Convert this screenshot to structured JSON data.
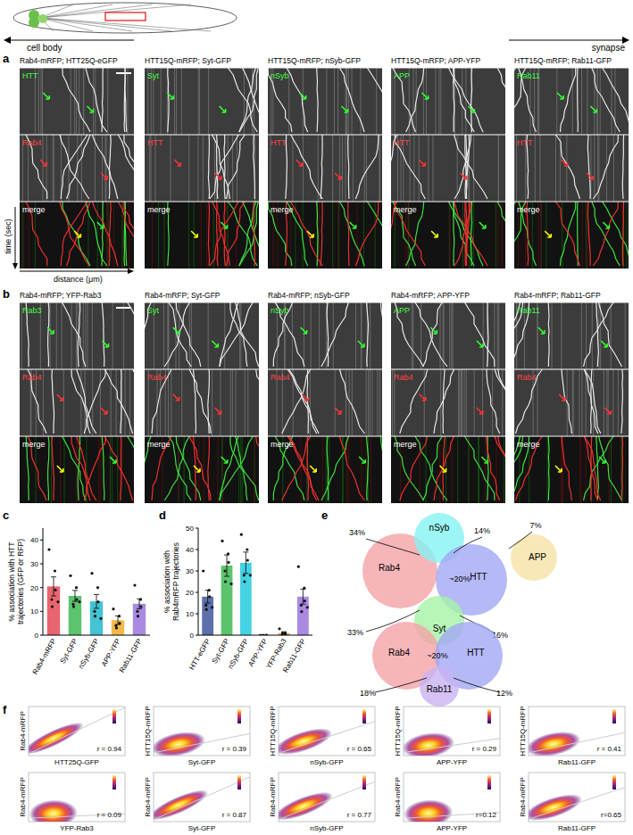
{
  "header": {
    "cell_body": "cell body",
    "synapse": "synapse"
  },
  "panel_labels": [
    "a",
    "b",
    "c",
    "d",
    "e",
    "f"
  ],
  "panel_a": {
    "y_label": "time (sec)",
    "x_label": "distance (μm)",
    "kymographs": [
      {
        "title": "Rab4-mRFP; HTT25Q-eGFP",
        "top": "HTT",
        "middle": "Rab4",
        "bottom": "merge"
      },
      {
        "title": "HTT15Q-mRFP; Syt-GFP",
        "top": "Syt",
        "middle": "HTT",
        "bottom": "merge"
      },
      {
        "title": "HTT15Q-mRFP; nSyb-GFP",
        "top": "nSyb",
        "middle": "HTT",
        "bottom": "merge"
      },
      {
        "title": "HTT15Q-mRFP; APP-YFP",
        "top": "APP",
        "middle": "HTT",
        "bottom": "merge"
      },
      {
        "title": "HTT15Q-mRFP; Rab11-GFP",
        "top": "Rab11",
        "middle": "HTT",
        "bottom": "merge"
      }
    ]
  },
  "panel_b": {
    "kymographs": [
      {
        "title": "Rab4-mRFP; YFP-Rab3",
        "top": "Rab3",
        "middle": "Rab4",
        "bottom": "merge"
      },
      {
        "title": "Rab4-mRFP; Syt-GFP",
        "top": "Syt",
        "middle": "Rab4",
        "bottom": "merge"
      },
      {
        "title": "Rab4-mRFP; nSyb-GFP",
        "top": "nSyb",
        "middle": "Rab4",
        "bottom": "merge"
      },
      {
        "title": "Rab4-mRFP; APP-YFP",
        "top": "APP",
        "middle": "Rab4",
        "bottom": "merge"
      },
      {
        "title": "Rab4-mRFP; Rab11-GFP",
        "top": "Rab11",
        "middle": "Rab4",
        "bottom": "merge"
      }
    ]
  },
  "chart_data": [
    {
      "type": "bar",
      "y_label": [
        "% association with HTT",
        "trajectories (GFP or RFP)"
      ],
      "categories": [
        "Rab4-mRFP",
        "Syt-GFP",
        "nSyb-GFP",
        "APP-YFP",
        "Rab11-GFP"
      ],
      "values": [
        20.5,
        16.5,
        14.2,
        6.3,
        13.2
      ],
      "errors": [
        4,
        2.3,
        2.9,
        1.8,
        2.1
      ],
      "colors": [
        "#e8646e",
        "#5cc46c",
        "#43c3d3",
        "#f2b94a",
        "#a98ae0"
      ],
      "points": [
        [
          36,
          27,
          19,
          15,
          12,
          14
        ],
        [
          25,
          20,
          15,
          13,
          12,
          14
        ],
        [
          26,
          20,
          14,
          10,
          8,
          7
        ],
        [
          11,
          8,
          5,
          4,
          3
        ],
        [
          21,
          15,
          12,
          10,
          8
        ]
      ],
      "ylim": [
        0,
        45
      ],
      "yticks": [
        0,
        10,
        20,
        30,
        40
      ]
    },
    {
      "type": "bar",
      "y_label": [
        "% association with",
        "Rab4mRFP trajectories"
      ],
      "categories": [
        "HTT-eGFP",
        "Syt-GFP",
        "nSyb-GFP",
        "APP-YFP",
        "YFP-Rab3",
        "Rab11-GFP"
      ],
      "values": [
        18,
        32.5,
        33.8,
        0,
        1,
        18
      ],
      "errors": [
        3,
        5,
        5,
        0,
        0.6,
        3.5
      ],
      "colors": [
        "#5b6fa8",
        "#5cc46c",
        "#43d3e3",
        "#f2d04a",
        "#f5a85a",
        "#a98ae0"
      ],
      "points": [
        [
          30,
          21,
          18,
          14,
          12,
          13
        ],
        [
          44,
          38,
          34,
          30,
          25,
          24
        ],
        [
          47,
          40,
          35,
          28,
          25,
          28
        ],
        [
          0,
          0,
          0,
          0
        ],
        [
          3,
          1,
          0,
          0,
          1
        ],
        [
          32,
          22,
          16,
          14,
          11,
          13
        ]
      ],
      "ylim": [
        0,
        50
      ],
      "yticks": [
        0,
        10,
        20,
        30,
        40,
        50
      ]
    }
  ],
  "panel_e": {
    "venn_top": {
      "circles": [
        {
          "name": "Rab4",
          "color": "#f4a3a8"
        },
        {
          "name": "nSyb",
          "color": "#86f2f2"
        },
        {
          "name": "HTT",
          "color": "#a3a8f2"
        },
        {
          "name": "APP",
          "color": "#f6e2a6"
        },
        {
          "name": "Syt",
          "color": "#a6f2a6"
        }
      ],
      "labels": [
        "34%",
        "14%",
        "7%",
        "~20%",
        "33%",
        "16%"
      ]
    },
    "venn_bottom": {
      "circles": [
        {
          "name": "Rab4",
          "color": "#f4a3a8"
        },
        {
          "name": "HTT",
          "color": "#a3a8f2"
        },
        {
          "name": "Rab11",
          "color": "#c9b3f2"
        }
      ],
      "labels": [
        "~20%",
        "18%",
        "12%"
      ]
    }
  },
  "panel_f": {
    "plots": [
      {
        "y_label": "Rab4-mRFP",
        "x_label": "HTT25Q-GFP",
        "r": 0.94,
        "r_label": "r = 0.94"
      },
      {
        "y_label": "HTT15Q-mRFP",
        "x_label": "Syt-GFP",
        "r": 0.39,
        "r_label": "r = 0.39"
      },
      {
        "y_label": "HTT15Q-mRFP",
        "x_label": "nSyb-GFP",
        "r": 0.65,
        "r_label": "r = 0.65"
      },
      {
        "y_label": "HTT15Q-mRFP",
        "x_label": "APP-YFP",
        "r": 0.29,
        "r_label": "r = 0.29"
      },
      {
        "y_label": "HTT15Q-mRFP",
        "x_label": "Rab11-GFP",
        "r": 0.41,
        "r_label": "r = 0.41"
      },
      {
        "y_label": "Rab4-mRFP",
        "x_label": "YFP-Rab3",
        "r": 0.09,
        "r_label": "r = 0.09"
      },
      {
        "y_label": "Rab4-mRFP",
        "x_label": "Syt-GFP",
        "r": 0.87,
        "r_label": "r = 0.87"
      },
      {
        "y_label": "Rab4-mRFP",
        "x_label": "nSyb-GFP",
        "r": 0.77,
        "r_label": "r = 0.77"
      },
      {
        "y_label": "Rab4-mRFP",
        "x_label": "APP-YFP",
        "r": 0.12,
        "r_label": "r=0.12"
      },
      {
        "y_label": "Rab4-mRFP",
        "x_label": "Rab11-GFP",
        "r": 0.65,
        "r_label": "r=0.65"
      }
    ]
  }
}
